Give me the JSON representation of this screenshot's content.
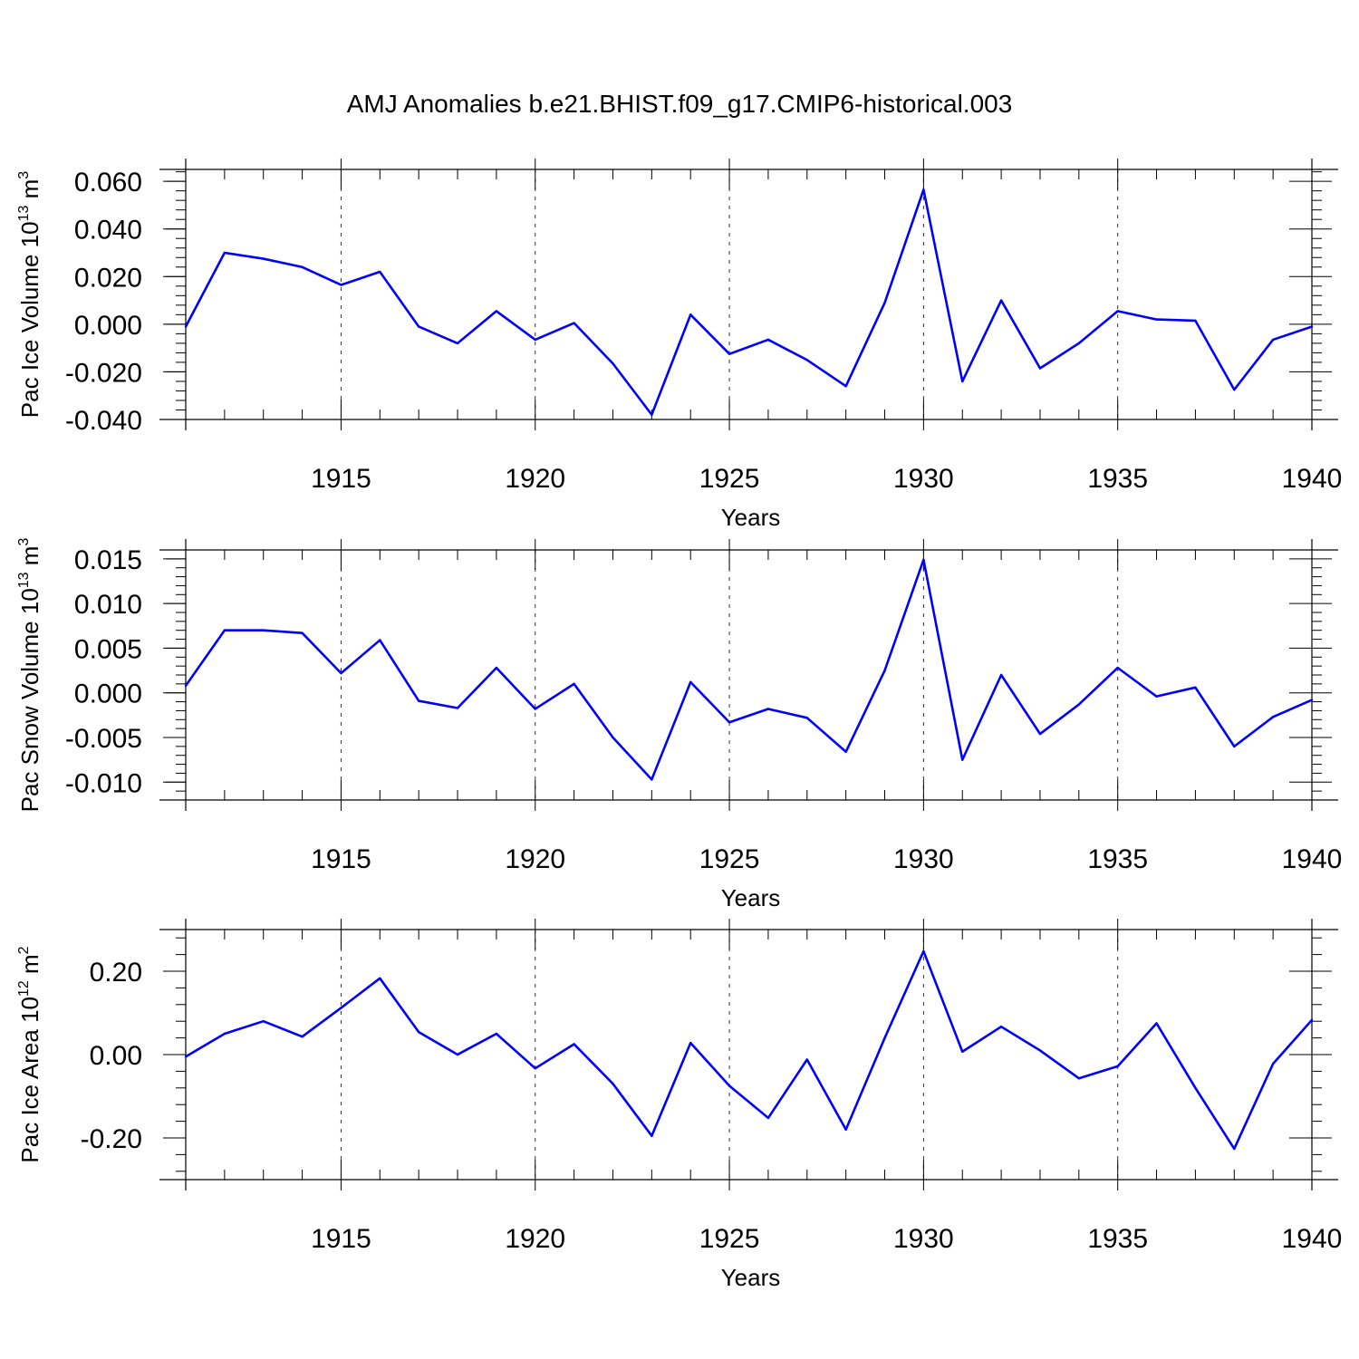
{
  "title": "AMJ Anomalies b.e21.BHIST.f09_g17.CMIP6-historical.003",
  "colors": {
    "series": "#0000ff",
    "axis": "#000000",
    "grid": "#000000",
    "background": "#ffffff"
  },
  "chart_data": [
    {
      "type": "line",
      "xlabel": "Years",
      "ylabel_main": "Pac Ice Volume 10",
      "ylabel_exp1": "13",
      "ylabel_unit": " m",
      "ylabel_exp2": "3",
      "xlim": [
        1911,
        1940
      ],
      "ylim": [
        -0.04,
        0.065
      ],
      "yticks": [
        0.06,
        0.04,
        0.02,
        0.0,
        -0.02,
        -0.04
      ],
      "ytick_labels": [
        "0.060",
        "0.040",
        "0.020",
        "0.000",
        "-0.020",
        "-0.040"
      ],
      "xticks": [
        1915,
        1920,
        1925,
        1930,
        1935,
        1940
      ],
      "xtick_labels": [
        "1915",
        "1920",
        "1925",
        "1930",
        "1935",
        "1940"
      ],
      "grid": "x-dashed",
      "series": [
        {
          "name": "Pac Ice Volume",
          "x": [
            1911,
            1912,
            1913,
            1914,
            1915,
            1916,
            1917,
            1918,
            1919,
            1920,
            1921,
            1922,
            1923,
            1924,
            1925,
            1926,
            1927,
            1928,
            1929,
            1930,
            1931,
            1932,
            1933,
            1934,
            1935,
            1936,
            1937,
            1938,
            1939,
            1940
          ],
          "values": [
            -0.001,
            0.03,
            0.0275,
            0.024,
            0.0165,
            0.022,
            -0.001,
            -0.008,
            0.0055,
            -0.0065,
            0.0005,
            -0.0165,
            -0.038,
            0.004,
            -0.0125,
            -0.0065,
            -0.015,
            -0.026,
            0.009,
            0.0565,
            -0.024,
            0.01,
            -0.0185,
            -0.008,
            0.0055,
            0.002,
            0.0015,
            -0.0275,
            -0.0065,
            -0.001
          ]
        }
      ]
    },
    {
      "type": "line",
      "xlabel": "Years",
      "ylabel_main": "Pac Snow Volume 10",
      "ylabel_exp1": "13",
      "ylabel_unit": " m",
      "ylabel_exp2": "3",
      "xlim": [
        1911,
        1940
      ],
      "ylim": [
        -0.012,
        0.016
      ],
      "yticks": [
        0.015,
        0.01,
        0.005,
        0.0,
        -0.005,
        -0.01
      ],
      "ytick_labels": [
        "0.015",
        "0.010",
        "0.005",
        "0.000",
        "-0.005",
        "-0.010"
      ],
      "xticks": [
        1915,
        1920,
        1925,
        1930,
        1935,
        1940
      ],
      "xtick_labels": [
        "1915",
        "1920",
        "1925",
        "1930",
        "1935",
        "1940"
      ],
      "grid": "x-dashed",
      "series": [
        {
          "name": "Pac Snow Volume",
          "x": [
            1911,
            1912,
            1913,
            1914,
            1915,
            1916,
            1917,
            1918,
            1919,
            1920,
            1921,
            1922,
            1923,
            1924,
            1925,
            1926,
            1927,
            1928,
            1929,
            1930,
            1931,
            1932,
            1933,
            1934,
            1935,
            1936,
            1937,
            1938,
            1939,
            1940
          ],
          "values": [
            0.0008,
            0.007,
            0.007,
            0.0067,
            0.0022,
            0.0059,
            -0.0009,
            -0.0017,
            0.0028,
            -0.0018,
            0.001,
            -0.005,
            -0.0097,
            0.0012,
            -0.0033,
            -0.0018,
            -0.0028,
            -0.0066,
            0.0025,
            0.0149,
            -0.0075,
            0.002,
            -0.0046,
            -0.0013,
            0.0028,
            -0.0004,
            0.0006,
            -0.006,
            -0.0027,
            -0.0008
          ]
        }
      ]
    },
    {
      "type": "line",
      "xlabel": "Years",
      "ylabel_main": "Pac Ice Area 10",
      "ylabel_exp1": "12",
      "ylabel_unit": " m",
      "ylabel_exp2": "2",
      "xlim": [
        1911,
        1940
      ],
      "ylim": [
        -0.3,
        0.3
      ],
      "yticks": [
        0.2,
        0.0,
        -0.2
      ],
      "ytick_labels": [
        "0.20",
        "0.00",
        "-0.20"
      ],
      "xticks": [
        1915,
        1920,
        1925,
        1930,
        1935,
        1940
      ],
      "xtick_labels": [
        "1915",
        "1920",
        "1925",
        "1930",
        "1935",
        "1940"
      ],
      "grid": "x-dashed",
      "series": [
        {
          "name": "Pac Ice Area",
          "x": [
            1911,
            1912,
            1913,
            1914,
            1915,
            1916,
            1917,
            1918,
            1919,
            1920,
            1921,
            1922,
            1923,
            1924,
            1925,
            1926,
            1927,
            1928,
            1929,
            1930,
            1931,
            1932,
            1933,
            1934,
            1935,
            1936,
            1937,
            1938,
            1939,
            1940
          ],
          "values": [
            -0.005,
            0.05,
            0.08,
            0.043,
            0.112,
            0.183,
            0.054,
            0.0,
            0.05,
            -0.033,
            0.025,
            -0.07,
            -0.195,
            0.028,
            -0.075,
            -0.152,
            -0.012,
            -0.18,
            0.04,
            0.248,
            0.007,
            0.067,
            0.01,
            -0.057,
            -0.028,
            0.075,
            -0.08,
            -0.226,
            -0.022,
            0.083
          ]
        }
      ]
    }
  ]
}
